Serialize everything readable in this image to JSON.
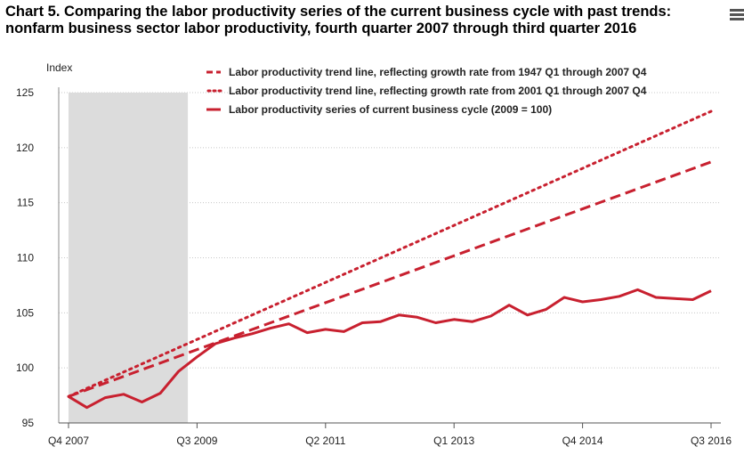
{
  "chart_data": {
    "type": "line",
    "title": "Chart 5. Comparing the labor productivity series of the current business cycle with past trends: nonfarm business sector labor productivity, fourth quarter 2007 through third quarter 2016",
    "ylabel": "Index",
    "xlabel": "",
    "ylim": [
      95,
      125
    ],
    "yticks": [
      95,
      100,
      105,
      110,
      115,
      120,
      125
    ],
    "x_tick_labels": [
      "Q4 2007",
      "Q3 2009",
      "Q2 2011",
      "Q1 2013",
      "Q4 2014",
      "Q3 2016"
    ],
    "x_tick_indices": [
      0,
      7,
      14,
      21,
      28,
      35
    ],
    "recession": {
      "start_index": 0,
      "end_index": 6.5
    },
    "grid": "horizontal dotted",
    "legend_position": "top",
    "color": "#c8202f",
    "series": [
      {
        "name": "Labor productivity trend line, reflecting growth rate from 1947 Q1 through 2007 Q4",
        "style": "dashed",
        "start": 97.4,
        "end": 118.7
      },
      {
        "name": "Labor productivity trend line, reflecting growth rate from 2001 Q1 through 2007 Q4",
        "style": "dotted",
        "start": 97.4,
        "end": 123.3
      },
      {
        "name": "Labor productivity series of current business cycle (2009 = 100)",
        "style": "solid",
        "values": [
          97.4,
          96.4,
          97.3,
          97.6,
          96.9,
          97.7,
          99.7,
          101.0,
          102.2,
          102.7,
          103.1,
          103.6,
          104.0,
          103.2,
          103.5,
          103.3,
          104.1,
          104.2,
          104.8,
          104.6,
          104.1,
          104.4,
          104.2,
          104.7,
          105.7,
          104.8,
          105.3,
          106.4,
          106.0,
          106.2,
          106.5,
          107.1,
          106.4,
          106.3,
          106.2,
          107.0
        ]
      }
    ]
  }
}
